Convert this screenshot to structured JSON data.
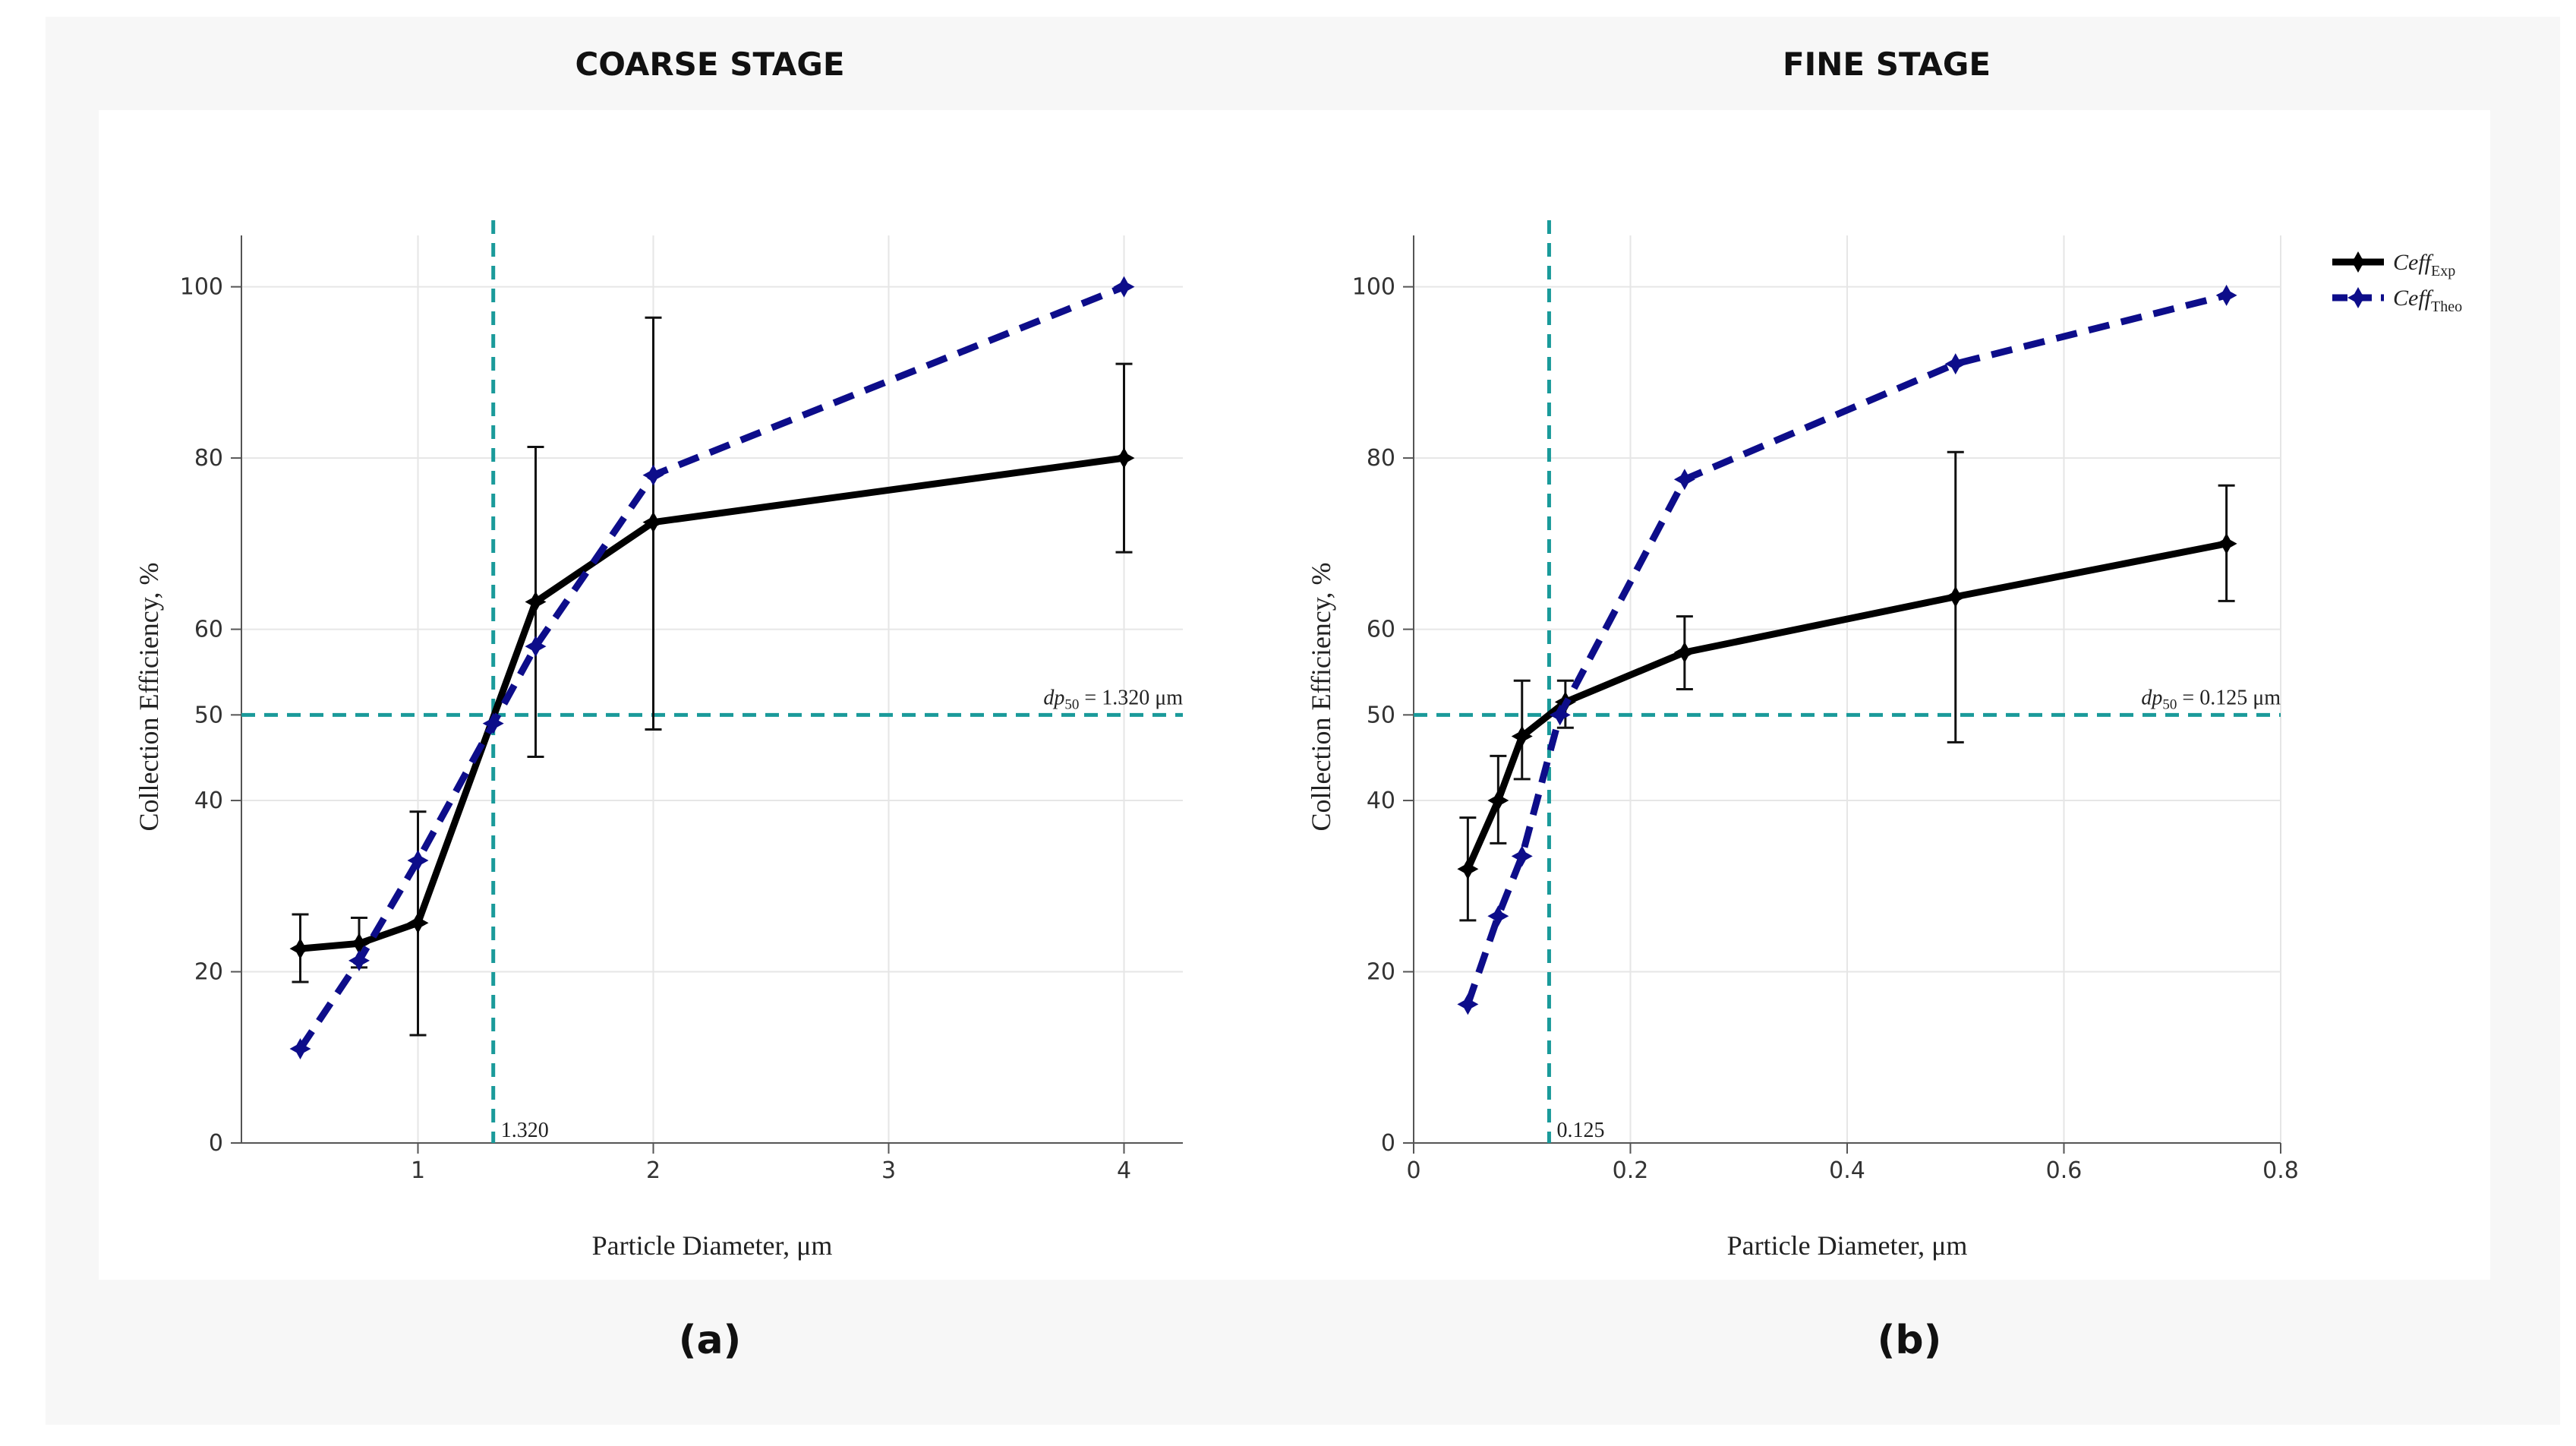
{
  "figure": {
    "panel_a_title": "COARSE STAGE",
    "panel_b_title": "FINE STAGE",
    "panel_a_label": "(a)",
    "panel_b_label": "(b)"
  },
  "legend": {
    "exp_base": "Ceff",
    "exp_sub": "Exp",
    "theo_base": "Ceff",
    "theo_sub": "Theo"
  },
  "colors": {
    "exp": "#000000",
    "theo": "#0d0d8a",
    "ref": "#1a9a9a",
    "grid": "#e6e6e6"
  },
  "chart_data": [
    {
      "type": "line",
      "title": "COARSE STAGE",
      "xlabel": "Particle Diameter, μm",
      "ylabel": "Collection Efficiency, %",
      "xlim": [
        0.25,
        4.25
      ],
      "ylim": [
        0,
        106
      ],
      "xticks": [
        1,
        2,
        3,
        4
      ],
      "yticks": [
        0,
        20,
        40,
        50,
        60,
        80,
        100
      ],
      "grid": true,
      "series": [
        {
          "name": "Ceff_Exp",
          "style": "solid",
          "x": [
            0.5,
            0.75,
            1,
            1.5,
            2,
            4
          ],
          "y": [
            22.7,
            23.3,
            25.7,
            63.2,
            72.5,
            80.0
          ],
          "err_low": [
            18.8,
            20.5,
            12.6,
            45.1,
            48.3,
            69.0
          ],
          "err_high": [
            26.7,
            26.3,
            38.7,
            81.3,
            96.4,
            91.0
          ]
        },
        {
          "name": "Ceff_Theo",
          "style": "dashed",
          "x": [
            0.5,
            0.75,
            1,
            1.32,
            1.5,
            2,
            4
          ],
          "y": [
            11.0,
            21.3,
            33.0,
            49.0,
            58.0,
            78.0,
            100.0
          ]
        }
      ],
      "dp50": 1.32,
      "dp50_tick_label": "1.320",
      "dp50_label_base": "dp",
      "dp50_label_sub": "50",
      "dp50_label_value": " = 1.320 μm",
      "ref_y": 50
    },
    {
      "type": "line",
      "title": "FINE STAGE",
      "xlabel": "Particle Diameter, μm",
      "ylabel": "Collection Efficiency, %",
      "xlim": [
        0,
        0.8
      ],
      "ylim": [
        0,
        106
      ],
      "xticks": [
        0,
        0.2,
        0.4,
        0.6,
        0.8
      ],
      "xtick_labels": [
        "0",
        "0.2",
        "0.4",
        "0.6",
        "0.8"
      ],
      "yticks": [
        0,
        20,
        40,
        50,
        60,
        80,
        100
      ],
      "grid": true,
      "series": [
        {
          "name": "Ceff_Exp",
          "style": "solid",
          "x": [
            0.05,
            0.078,
            0.1,
            0.14,
            0.25,
            0.5,
            0.75
          ],
          "y": [
            32.0,
            40.0,
            47.5,
            51.5,
            57.3,
            63.8,
            70.0
          ],
          "err_low": [
            26.0,
            35.0,
            42.5,
            48.5,
            53.0,
            46.8,
            63.3
          ],
          "err_high": [
            38.0,
            45.2,
            54.0,
            54.0,
            61.5,
            80.7,
            76.8
          ]
        },
        {
          "name": "Ceff_Theo",
          "style": "dashed",
          "x": [
            0.05,
            0.078,
            0.1,
            0.135,
            0.25,
            0.5,
            0.75
          ],
          "y": [
            16.2,
            26.5,
            33.5,
            50.0,
            77.5,
            91.0,
            99.0
          ]
        }
      ],
      "dp50": 0.125,
      "dp50_tick_label": "0.125",
      "dp50_label_base": "dp",
      "dp50_label_sub": "50",
      "dp50_label_value": " = 0.125 μm",
      "ref_y": 50
    }
  ]
}
